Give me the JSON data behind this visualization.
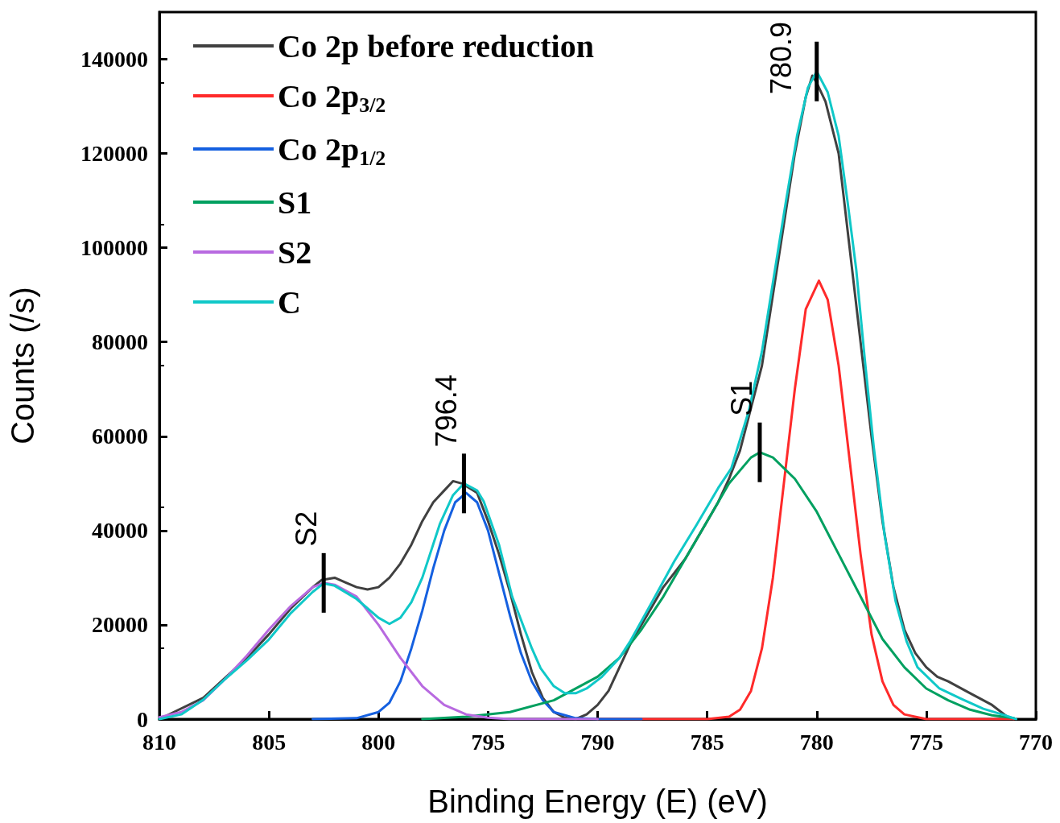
{
  "chart_data": {
    "type": "line",
    "xlabel": "Binding Energy (E) (eV)",
    "ylabel": "Counts (/s)",
    "xlim": [
      810,
      770
    ],
    "xticks": [
      810,
      805,
      800,
      795,
      790,
      785,
      780,
      775,
      770
    ],
    "ylim": [
      0,
      150000
    ],
    "yticks": [
      0,
      20000,
      40000,
      60000,
      80000,
      100000,
      120000,
      140000
    ],
    "grid": false,
    "legend": "top left",
    "marker": "none",
    "line_style": "solid",
    "series": [
      {
        "name": "Co 2p before reduction",
        "color": "#404040",
        "x": [
          810,
          808,
          806,
          805,
          804,
          803,
          802.6,
          802,
          801.5,
          801,
          800.5,
          800,
          799.5,
          799,
          798.5,
          798,
          797.5,
          797,
          796.6,
          796.2,
          795.5,
          795,
          794.5,
          794,
          793.5,
          793,
          792.5,
          792,
          791.5,
          791,
          790.5,
          790,
          789.5,
          789,
          788.5,
          788,
          787,
          786,
          785,
          784.5,
          784,
          783.5,
          783,
          782.5,
          782,
          781.5,
          781,
          780.5,
          780.2,
          780,
          779.6,
          779,
          778.5,
          778,
          777.5,
          777,
          776.5,
          776,
          775.5,
          775,
          774.5,
          774,
          773,
          772,
          771.3,
          771
        ],
        "values": [
          0,
          4500,
          13000,
          18000,
          23500,
          28000,
          29500,
          30000,
          29000,
          28000,
          27500,
          28000,
          30000,
          33000,
          37000,
          42000,
          46000,
          48500,
          50500,
          50000,
          48000,
          42000,
          35000,
          27000,
          18000,
          10000,
          4500,
          1500,
          300,
          0,
          1000,
          3000,
          6000,
          11000,
          16000,
          20000,
          28000,
          34000,
          42000,
          46000,
          51000,
          57000,
          66000,
          75000,
          90000,
          105000,
          120000,
          132000,
          136500,
          135000,
          131000,
          120000,
          100000,
          80000,
          60000,
          42000,
          28000,
          19000,
          14000,
          11000,
          9000,
          8000,
          5500,
          3000,
          500,
          0
        ]
      },
      {
        "name": "Co 2p$_{3/2}$",
        "color": "#ff2a2a",
        "x": [
          790,
          785,
          784,
          783.5,
          783,
          782.5,
          782,
          781.5,
          781,
          780.5,
          779.9,
          779.5,
          779,
          778.5,
          778,
          777.5,
          777,
          776.5,
          776,
          775,
          771
        ],
        "values": [
          0,
          0,
          500,
          2000,
          6000,
          15000,
          30000,
          50000,
          70000,
          87000,
          93000,
          89000,
          75000,
          55000,
          35000,
          18000,
          8000,
          3000,
          1000,
          0,
          0
        ]
      },
      {
        "name": "Co 2p$_{1/2}$",
        "color": "#1560e0",
        "x": [
          803,
          801,
          800,
          799.5,
          799,
          798.5,
          798,
          797.5,
          797,
          796.5,
          796,
          795.5,
          795,
          794.5,
          794,
          793.5,
          793,
          792.5,
          792,
          791,
          790,
          788
        ],
        "values": [
          0,
          200,
          1500,
          3500,
          8000,
          15000,
          23000,
          32000,
          40000,
          46000,
          48000,
          46000,
          40000,
          31000,
          22000,
          14000,
          8000,
          4000,
          1500,
          200,
          0,
          0
        ]
      },
      {
        "name": "S1",
        "color": "#00a060",
        "x": [
          798,
          796,
          794,
          792,
          790,
          789,
          788,
          787,
          786,
          785,
          784,
          783,
          782.6,
          782,
          781,
          780,
          779,
          778,
          777,
          776,
          775,
          774,
          773,
          772,
          771
        ],
        "values": [
          0,
          500,
          1500,
          4000,
          9000,
          13000,
          19000,
          26000,
          34000,
          42000,
          50000,
          55500,
          56600,
          55500,
          51000,
          44000,
          35000,
          26000,
          17000,
          11000,
          6500,
          4000,
          2000,
          800,
          200
        ]
      },
      {
        "name": "S2",
        "color": "#b86ae0",
        "x": [
          810,
          809,
          808,
          807,
          806,
          805,
          804,
          803,
          802.5,
          802,
          801,
          800,
          799,
          798,
          797,
          796,
          795,
          794,
          790
        ],
        "values": [
          400,
          1500,
          4000,
          8500,
          13500,
          19000,
          24000,
          28000,
          28900,
          28500,
          26000,
          20000,
          13000,
          7000,
          3000,
          1000,
          300,
          0,
          0
        ]
      },
      {
        "name": "C",
        "color": "#10c8c8",
        "x": [
          810,
          809,
          808,
          807,
          806,
          805,
          804,
          803,
          802.5,
          802,
          801,
          800,
          799.5,
          799,
          798.5,
          798,
          797.2,
          796.6,
          796.1,
          795.5,
          795.2,
          794.5,
          793.9,
          793,
          792.6,
          792,
          791.5,
          791,
          790.5,
          789.8,
          789,
          788.5,
          787.5,
          786.5,
          785.5,
          784.5,
          783.9,
          783.1,
          782.5,
          781.9,
          781.4,
          780.9,
          780.4,
          780,
          779.5,
          779,
          778.6,
          778.2,
          777.8,
          777.4,
          776.9,
          776.4,
          775.9,
          775.4,
          774.4,
          773.4,
          772.4,
          771.4,
          770.9
        ],
        "values": [
          0,
          1000,
          4100,
          8500,
          12500,
          16900,
          22500,
          27000,
          28800,
          28300,
          25500,
          21500,
          20200,
          21500,
          24800,
          30000,
          41400,
          47500,
          50000,
          48500,
          46200,
          37000,
          26000,
          15000,
          10800,
          7000,
          5500,
          5500,
          6500,
          9000,
          13000,
          16600,
          25000,
          33500,
          41100,
          49000,
          53200,
          65400,
          78000,
          95500,
          110000,
          123700,
          134000,
          137400,
          133000,
          123700,
          110000,
          95500,
          76000,
          57800,
          39000,
          25000,
          16500,
          11000,
          6500,
          4300,
          2200,
          800,
          0
        ]
      }
    ],
    "annotations": [
      {
        "text": "S2",
        "x": 802.5,
        "y": 28900
      },
      {
        "text": "796.4",
        "x": 796.1,
        "y": 50000
      },
      {
        "text": "S1",
        "x": 782.6,
        "y": 56600
      },
      {
        "text": "780.9",
        "x": 780,
        "y": 137400
      }
    ]
  }
}
